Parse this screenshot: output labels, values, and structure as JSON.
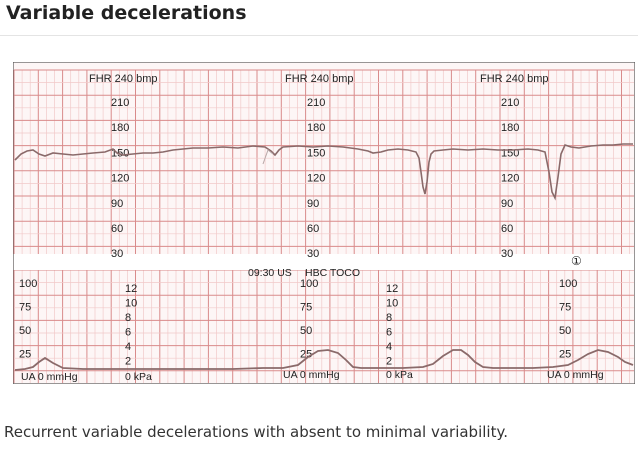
{
  "page": {
    "title": "Variable decelerations",
    "caption": "Recurrent variable decelerations with absent to minimal variability."
  },
  "strip": {
    "fhr_header": "FHR 240 bmp",
    "fhr_ticks": [
      "210",
      "180",
      "150",
      "120",
      "90",
      "60",
      "30"
    ],
    "time_label": "09:30 US",
    "toco_label": "HBC TOCO",
    "circled_marker": "①",
    "mmhg_ticks": [
      "100",
      "75",
      "50",
      "25"
    ],
    "kpa_ticks": [
      "12",
      "10",
      "8",
      "6",
      "4",
      "2"
    ],
    "ua_label": "UA 0 mmHg",
    "kpa_label": "0 kPa"
  },
  "colors": {
    "grid_major": "#d98b8b",
    "grid_minor": "#f1c9c9",
    "paper": "#fdf6f6",
    "trace": "#8a6a6a",
    "border": "#555555"
  }
}
